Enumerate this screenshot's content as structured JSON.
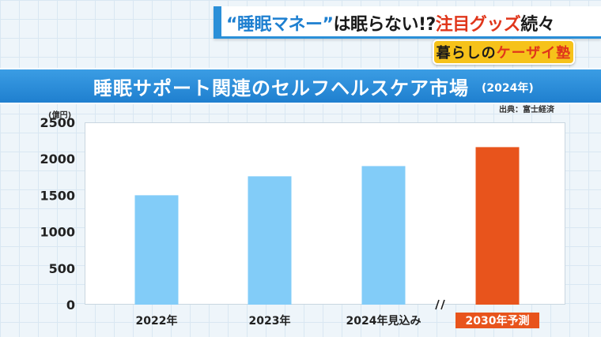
{
  "headline": {
    "quote_open": "“",
    "keyword": "睡眠マネー",
    "quote_close": "”",
    "middle": "は眠らない!?",
    "red_text": "注目グッズ",
    "tail": "続々"
  },
  "badge": {
    "part1": "暮らしの",
    "part2": "ケーザイ塾"
  },
  "colors": {
    "accent_blue": "#2a8fd8",
    "bar_normal": "#82ccf8",
    "bar_forecast": "#e8541c",
    "badge_yellow": "#f6c21a"
  },
  "source": "出典：富士経済",
  "chart_data": {
    "type": "bar",
    "title": "睡眠サポート関連のセルフヘルスケア市場",
    "subtitle": "(2024年)",
    "ylabel": "(億円)",
    "xlabel": "",
    "ylim": [
      0,
      2500
    ],
    "yticks": [
      0,
      500,
      1000,
      1500,
      2000,
      2500
    ],
    "categories": [
      "2022年",
      "2023年",
      "2024年見込み",
      "2030年予測"
    ],
    "values": [
      1500,
      1760,
      1900,
      2160
    ],
    "highlight_index": 3,
    "axis_break_after_index": 2,
    "grid": false,
    "legend": "none"
  }
}
